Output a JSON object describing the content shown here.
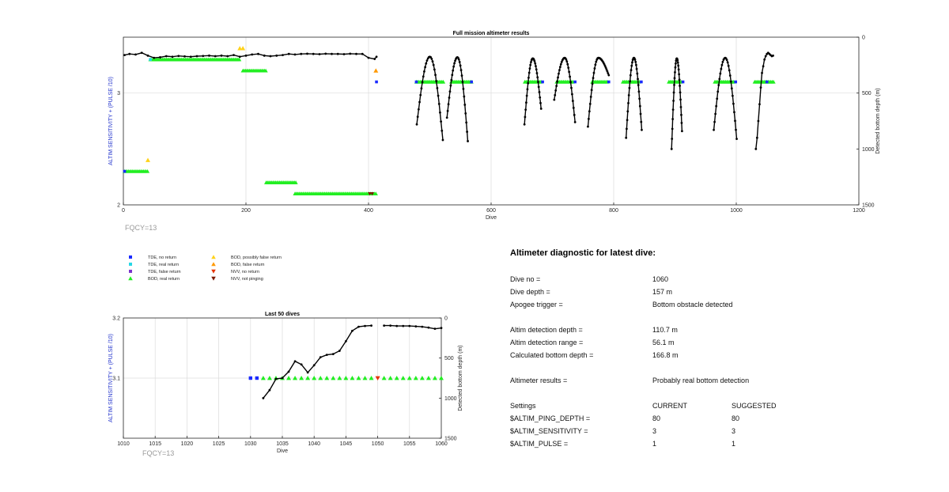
{
  "chart_data": [
    {
      "type": "scatter",
      "title": "Full mission altimeter results",
      "xlabel": "Dive",
      "ylabel": "ALTIM SENSITIVITY + (PULSE /10)",
      "y2label": "Detected bottom depth (m)",
      "xlim": [
        0,
        1200
      ],
      "ylim": [
        2,
        3.5
      ],
      "y2lim": [
        1500,
        0
      ],
      "xticks": [
        "0",
        "200",
        "400",
        "600",
        "800",
        "1000",
        "1200"
      ],
      "yticks": [
        "2",
        "3"
      ],
      "y2ticks": [
        "0",
        "500",
        "1000",
        "1500"
      ],
      "grid": true,
      "note": "FQCY=13",
      "bod_real_segments": [
        {
          "x0": 2,
          "x1": 40,
          "y": 2.3
        },
        {
          "x0": 44,
          "x1": 190,
          "y": 3.3
        },
        {
          "x0": 195,
          "x1": 233,
          "y": 3.2
        },
        {
          "x0": 233,
          "x1": 283,
          "y": 2.2
        },
        {
          "x0": 280,
          "x1": 413,
          "y": 2.1
        },
        {
          "x0": 478,
          "x1": 523,
          "y": 3.1
        },
        {
          "x0": 535,
          "x1": 570,
          "y": 3.1
        },
        {
          "x0": 655,
          "x1": 683,
          "y": 3.1
        },
        {
          "x0": 707,
          "x1": 735,
          "y": 3.1
        },
        {
          "x0": 765,
          "x1": 790,
          "y": 3.1
        },
        {
          "x0": 815,
          "x1": 842,
          "y": 3.1
        },
        {
          "x0": 890,
          "x1": 912,
          "y": 3.1
        },
        {
          "x0": 965,
          "x1": 998,
          "y": 3.1
        },
        {
          "x0": 1030,
          "x1": 1062,
          "y": 3.1
        }
      ],
      "bod_possibly_false": [
        [
          40,
          2.4
        ],
        [
          195,
          3.4
        ],
        [
          190,
          3.4
        ]
      ],
      "bod_false": [
        [
          412,
          3.2
        ]
      ],
      "tde_no_return": [
        [
          2,
          2.3
        ],
        [
          413,
          3.1
        ],
        [
          478,
          3.1
        ],
        [
          568,
          3.1
        ],
        [
          684,
          3.1
        ],
        [
          737,
          3.1
        ],
        [
          792,
          3.1
        ],
        [
          845,
          3.1
        ],
        [
          913,
          3.1
        ],
        [
          999,
          3.1
        ],
        [
          1050,
          3.1
        ]
      ],
      "tde_real_return": [
        [
          44,
          3.3
        ]
      ],
      "nvv_not_pinging": [
        [
          402,
          2.1
        ],
        [
          406,
          2.1
        ]
      ],
      "depth_early": {
        "x": [
          2,
          10,
          20,
          30,
          40,
          50,
          60,
          70,
          80,
          90,
          100,
          110,
          120,
          130,
          140,
          150,
          160,
          170,
          180,
          190,
          200,
          210,
          220,
          230,
          240,
          250,
          260,
          270,
          280,
          290,
          300,
          310,
          320,
          330,
          340,
          350,
          360,
          370,
          380,
          390,
          400,
          410,
          413
        ],
        "y": [
          160,
          150,
          155,
          140,
          165,
          185,
          180,
          170,
          175,
          168,
          172,
          175,
          170,
          168,
          165,
          170,
          165,
          170,
          160,
          175,
          165,
          155,
          150,
          165,
          170,
          165,
          160,
          150,
          155,
          150,
          148,
          150,
          152,
          148,
          150,
          150,
          152,
          148,
          150,
          150,
          185,
          195,
          175
        ]
      },
      "depth_dives": [
        {
          "start": 475,
          "end": 563,
          "peak_x": 500,
          "min": 175,
          "left": 780,
          "right": 920
        },
        {
          "start": 525,
          "end": 563,
          "peak_x": 545,
          "min": 180,
          "left": 720,
          "right": 930
        },
        {
          "start": 652,
          "end": 688,
          "peak_x": 668,
          "min": 190,
          "left": 780,
          "right": 640
        },
        {
          "start": 700,
          "end": 735,
          "peak_x": 720,
          "min": 185,
          "left": 560,
          "right": 760
        },
        {
          "start": 755,
          "end": 780,
          "peak_x": 775,
          "min": 185,
          "left": 800,
          "right": 340
        },
        {
          "start": 818,
          "end": 845,
          "peak_x": 833,
          "min": 185,
          "left": 900,
          "right": 830
        },
        {
          "start": 893,
          "end": 915,
          "peak_x": 903,
          "min": 190,
          "left": 1000,
          "right": 840
        },
        {
          "start": 960,
          "end": 998,
          "peak_x": 982,
          "min": 185,
          "left": 830,
          "right": 910
        }
      ],
      "depth_last": {
        "x": [
          1032,
          1034,
          1036,
          1038,
          1040,
          1042,
          1044,
          1046,
          1048,
          1050,
          1052,
          1054,
          1056,
          1058,
          1060
        ],
        "y": [
          1000,
          900,
          750,
          600,
          450,
          320,
          260,
          200,
          170,
          150,
          140,
          150,
          160,
          170,
          165
        ]
      }
    },
    {
      "type": "scatter",
      "title": "Last 50 dives",
      "xlabel": "Dive",
      "ylabel": "ALTIM SENSITIVITY + (PULSE /10)",
      "y2label": "Detected bottom depth (m)",
      "xlim": [
        1010,
        1060
      ],
      "ylim": [
        3.0,
        3.2
      ],
      "y2lim": [
        1500,
        0
      ],
      "xticks": [
        "1010",
        "1015",
        "1020",
        "1025",
        "1030",
        "1035",
        "1040",
        "1045",
        "1050",
        "1055",
        "1060"
      ],
      "yticks": [
        "3.1",
        "3.2"
      ],
      "y2ticks": [
        "0",
        "500",
        "1000",
        "1500"
      ],
      "grid": true,
      "note": "FQCY=13",
      "tde_no_return": [
        [
          1030,
          3.1
        ],
        [
          1031,
          3.1
        ]
      ],
      "bod_real": [
        1032,
        1033,
        1034,
        1035,
        1036,
        1037,
        1038,
        1039,
        1040,
        1041,
        1042,
        1043,
        1044,
        1045,
        1046,
        1047,
        1048,
        1049,
        1051,
        1052,
        1053,
        1054,
        1055,
        1056,
        1057,
        1058,
        1059,
        1060
      ],
      "nvv_no_return": [
        1050
      ],
      "depth": {
        "x": [
          1032,
          1033,
          1034,
          1035,
          1036,
          1037,
          1038,
          1039,
          1040,
          1041,
          1042,
          1043,
          1044,
          1045,
          1046,
          1047,
          1048,
          1049,
          1051,
          1052,
          1053,
          1054,
          1055,
          1056,
          1057,
          1058,
          1059,
          1060
        ],
        "y": [
          1000,
          900,
          760,
          750,
          670,
          540,
          580,
          680,
          590,
          490,
          460,
          450,
          410,
          290,
          160,
          110,
          100,
          95,
          95,
          95,
          100,
          100,
          100,
          105,
          110,
          120,
          135,
          125
        ]
      }
    }
  ],
  "legend": [
    {
      "label": "TDE, no return",
      "color": "#1a2aff",
      "shape": "square"
    },
    {
      "label": "TDE, real return",
      "color": "#26d7e6",
      "shape": "square"
    },
    {
      "label": "TDE, false return",
      "color": "#7a33cc",
      "shape": "square"
    },
    {
      "label": "BOD, real return",
      "color": "#22ee22",
      "shape": "triangle-up"
    },
    {
      "label": "BOD, possibly false return",
      "color": "#ffd21a",
      "shape": "triangle-up"
    },
    {
      "label": "BOD, false return",
      "color": "#ff9900",
      "shape": "triangle-up"
    },
    {
      "label": "NVV, no return",
      "color": "#e63300",
      "shape": "triangle-down"
    },
    {
      "label": "NVV, not pinging",
      "color": "#7a1a00",
      "shape": "triangle-down"
    }
  ],
  "diagnostic": {
    "title": "Altimeter diagnostic for latest dive:",
    "rows": [
      {
        "label": "Dive no =",
        "value": "1060"
      },
      {
        "label": "Dive depth =",
        "value": "157 m"
      },
      {
        "label": "Apogee trigger =",
        "value": "Bottom obstacle detected"
      },
      {
        "label": "Altim detection depth =",
        "value": "110.7 m"
      },
      {
        "label": "Altim detection range =",
        "value": "56.1 m"
      },
      {
        "label": "Calculated bottom depth =",
        "value": "166.8 m"
      },
      {
        "label": "Altimeter results =",
        "value": "Probably real bottom detection"
      }
    ],
    "settings_header": {
      "label": "Settings",
      "current": "CURRENT",
      "suggested": "SUGGESTED"
    },
    "settings": [
      {
        "label": "$ALTIM_PING_DEPTH =",
        "current": "80",
        "suggested": "80"
      },
      {
        "label": "$ALTIM_SENSITIVITY =",
        "current": "3",
        "suggested": "3"
      },
      {
        "label": "$ALTIM_PULSE =",
        "current": "1",
        "suggested": "1"
      }
    ]
  }
}
